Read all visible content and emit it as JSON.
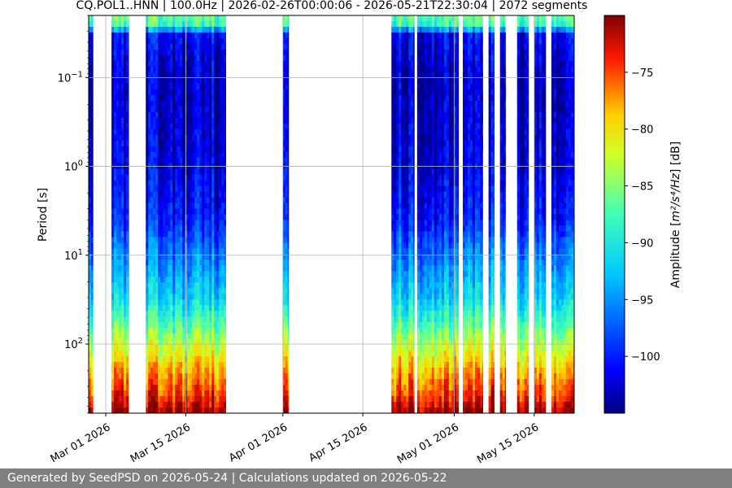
{
  "chart_data": {
    "type": "heatmap",
    "title": "CQ.POL1..HNN | 100.0Hz | 2026-02-26T00:00:06 - 2026-05-21T22:30:04 | 2072 segments",
    "xlabel": "",
    "ylabel": "Period [s]",
    "x_range": [
      "2026-02-26",
      "2026-05-22"
    ],
    "x_ticks": [
      "Mar 01 2026",
      "Mar 15 2026",
      "Apr 01 2026",
      "Apr 15 2026",
      "May 01 2026",
      "May 15 2026"
    ],
    "x_tick_dates": [
      "2026-03-01",
      "2026-03-15",
      "2026-04-01",
      "2026-04-15",
      "2026-05-01",
      "2026-05-15"
    ],
    "y_scale": "log",
    "y_inverted": true,
    "y_range": [
      0.02,
      600
    ],
    "y_ticks": [
      0.1,
      1,
      10,
      100
    ],
    "y_tick_labels": [
      {
        "base": "10",
        "exp": "−1"
      },
      {
        "base": "10",
        "exp": "0"
      },
      {
        "base": "10",
        "exp": "1"
      },
      {
        "base": "10",
        "exp": "2"
      }
    ],
    "grid": true,
    "colorbar": {
      "label_prefix": "Amplitude [",
      "label_units": "m²/s⁴/Hz",
      "label_suffix": "] [dB]",
      "colormap": "jet",
      "range": [
        -105,
        -70
      ],
      "ticks": [
        -75,
        -80,
        -85,
        -90,
        -95,
        -100
      ],
      "tick_labels": [
        "−75",
        "−80",
        "−85",
        "−90",
        "−95",
        "−100"
      ]
    },
    "data_segments": [
      {
        "start": "2026-02-26",
        "end": "2026-02-26T18:00"
      },
      {
        "start": "2026-03-02",
        "end": "2026-03-05"
      },
      {
        "start": "2026-03-08",
        "end": "2026-03-22"
      },
      {
        "start": "2026-04-01",
        "end": "2026-04-02"
      },
      {
        "start": "2026-04-20",
        "end": "2026-04-24"
      },
      {
        "start": "2026-04-24T12:00",
        "end": "2026-05-01T18:00"
      },
      {
        "start": "2026-05-02T12:00",
        "end": "2026-05-06"
      },
      {
        "start": "2026-05-07",
        "end": "2026-05-08"
      },
      {
        "start": "2026-05-09",
        "end": "2026-05-10"
      },
      {
        "start": "2026-05-12",
        "end": "2026-05-14"
      },
      {
        "start": "2026-05-15",
        "end": "2026-05-17"
      },
      {
        "start": "2026-05-18",
        "end": "2026-05-21T22:30"
      }
    ],
    "psd_profile_db": [
      {
        "period": 0.02,
        "db": -86
      },
      {
        "period": 0.028,
        "db": -89
      },
      {
        "period": 0.03,
        "db": -101
      },
      {
        "period": 0.1,
        "db": -103
      },
      {
        "period": 1,
        "db": -102
      },
      {
        "period": 4,
        "db": -100
      },
      {
        "period": 10,
        "db": -96
      },
      {
        "period": 30,
        "db": -92
      },
      {
        "period": 60,
        "db": -87
      },
      {
        "period": 100,
        "db": -83
      },
      {
        "period": 200,
        "db": -78
      },
      {
        "period": 400,
        "db": -74
      },
      {
        "period": 600,
        "db": -70
      }
    ]
  },
  "footer": {
    "text": "Generated by SeedPSD on 2026-05-24 | Calculations updated on 2026-05-22"
  }
}
